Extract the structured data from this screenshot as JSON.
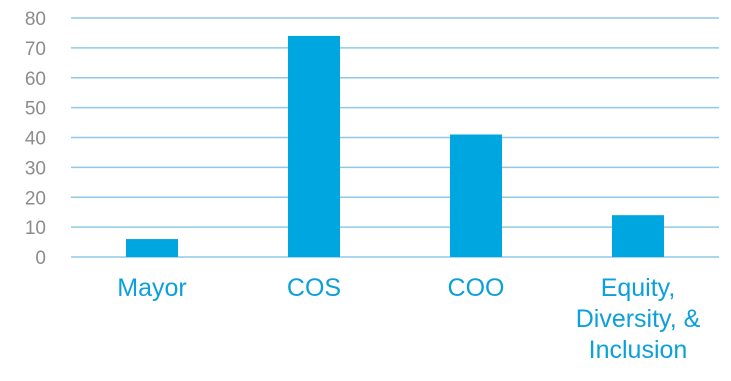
{
  "chart_data": {
    "type": "bar",
    "categories": [
      "Mayor",
      "COS",
      "COO",
      "Equity, Diversity, & Inclusion"
    ],
    "category_label_lines": [
      [
        "Mayor"
      ],
      [
        "COS"
      ],
      [
        "COO"
      ],
      [
        "Equity,",
        "Diversity, &",
        "Inclusion"
      ]
    ],
    "values": [
      6,
      74,
      41,
      14
    ],
    "title": "",
    "xlabel": "",
    "ylabel": "",
    "ylim": [
      0,
      80
    ],
    "yticks": [
      0,
      10,
      20,
      30,
      40,
      50,
      60,
      70,
      80
    ],
    "grid": true,
    "legend": "none",
    "colors": {
      "bar": "#00a6e0",
      "grid": "#8fc9e6",
      "ytick_text": "#8c8c8c",
      "xtick_text": "#0ba0dc"
    }
  }
}
